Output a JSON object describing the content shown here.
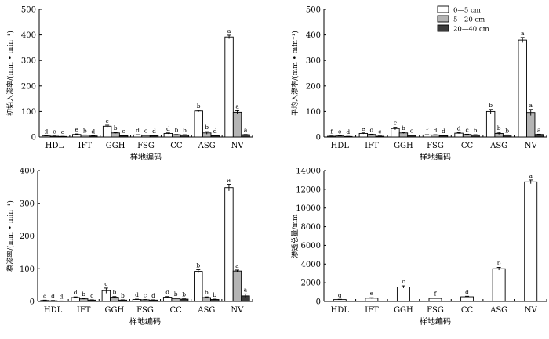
{
  "legend": {
    "series_names": [
      "0—5 cm",
      "5—20 cm",
      "20—40 cm"
    ],
    "colors": [
      "#ffffff",
      "#b4b4b4",
      "#3a3a3a"
    ]
  },
  "chart_data": [
    {
      "type": "bar",
      "id": "initial",
      "xlabel": "样地编码",
      "ylabel": "初始入渗率/(mm • min⁻¹)",
      "ylim": [
        0,
        500
      ],
      "yticks": [
        0,
        100,
        200,
        300,
        400,
        500
      ],
      "categories": [
        "HDL",
        "IFT",
        "GGH",
        "FSG",
        "CC",
        "ASG",
        "NV"
      ],
      "series": [
        {
          "name": "0—5 cm",
          "values": [
            4,
            10,
            42,
            8,
            14,
            102,
            392
          ],
          "errors": [
            1,
            2,
            4,
            1,
            2,
            3,
            7
          ],
          "labels": [
            "d",
            "e",
            "c",
            "d",
            "d",
            "b",
            "a"
          ]
        },
        {
          "name": "5—20 cm",
          "values": [
            3,
            7,
            16,
            6,
            9,
            16,
            97
          ],
          "errors": [
            1,
            1,
            2,
            1,
            1,
            5,
            6
          ],
          "labels": [
            "e",
            "b",
            "b",
            "c",
            "b",
            "b",
            "a"
          ]
        },
        {
          "name": "20—40 cm",
          "values": [
            2,
            4,
            5,
            5,
            8,
            5,
            9
          ],
          "errors": [
            0.5,
            1,
            1,
            1,
            1,
            1,
            1
          ],
          "labels": [
            "e",
            "d",
            "c",
            "d",
            "b",
            "d",
            "a"
          ]
        }
      ]
    },
    {
      "type": "bar",
      "id": "average",
      "xlabel": "样地编码",
      "ylabel": "平均入渗率/(mm • min⁻¹)",
      "ylim": [
        0,
        500
      ],
      "yticks": [
        0,
        100,
        200,
        300,
        400,
        500
      ],
      "categories": [
        "HDL",
        "IFT",
        "GGH",
        "FSG",
        "CC",
        "ASG",
        "NV"
      ],
      "series": [
        {
          "name": "0—5 cm",
          "values": [
            3,
            14,
            33,
            8,
            15,
            100,
            380
          ],
          "errors": [
            1,
            2,
            5,
            1,
            2,
            8,
            10
          ],
          "labels": [
            "f",
            "e",
            "c",
            "f",
            "d",
            "b",
            "a"
          ]
        },
        {
          "name": "5—20 cm",
          "values": [
            4,
            10,
            16,
            8,
            10,
            14,
            96
          ],
          "errors": [
            1,
            1,
            2,
            1,
            1,
            4,
            12
          ],
          "labels": [
            "e",
            "d",
            "b",
            "d",
            "c",
            "b",
            "a"
          ]
        },
        {
          "name": "20—40 cm",
          "values": [
            2,
            3,
            6,
            5,
            8,
            7,
            10
          ],
          "errors": [
            0.5,
            1,
            1,
            1,
            1,
            1,
            1
          ],
          "labels": [
            "d",
            "c",
            "c",
            "d",
            "b",
            "b",
            "a"
          ]
        }
      ]
    },
    {
      "type": "bar",
      "id": "steady",
      "xlabel": "样地编码",
      "ylabel": "稳渗率/(mm • min⁻¹)",
      "ylim": [
        0,
        400
      ],
      "yticks": [
        0,
        100,
        200,
        300,
        400
      ],
      "categories": [
        "HDL",
        "IFT",
        "GGH",
        "FSG",
        "CC",
        "ASG",
        "NV"
      ],
      "series": [
        {
          "name": "0—5 cm",
          "values": [
            3,
            12,
            33,
            6,
            13,
            92,
            348
          ],
          "errors": [
            1,
            2,
            8,
            1,
            2,
            5,
            10
          ],
          "labels": [
            "c",
            "d",
            "c",
            "d",
            "d",
            "b",
            "a"
          ]
        },
        {
          "name": "5—20 cm",
          "values": [
            2,
            8,
            13,
            5,
            9,
            12,
            93
          ],
          "errors": [
            1,
            1,
            2,
            1,
            1,
            2,
            3
          ],
          "labels": [
            "d",
            "b",
            "b",
            "c",
            "b",
            "b",
            "a"
          ]
        },
        {
          "name": "20—40 cm",
          "values": [
            1,
            4,
            4,
            4,
            7,
            6,
            17
          ],
          "errors": [
            0.5,
            1,
            1,
            1,
            1,
            1,
            6
          ],
          "labels": [
            "d",
            "c",
            "b",
            "d",
            "b",
            "b",
            "a"
          ]
        }
      ]
    },
    {
      "type": "bar",
      "id": "total",
      "xlabel": "样地编码",
      "ylabel": "渗透总量/mm",
      "ylim": [
        0,
        14000
      ],
      "yticks": [
        0,
        2000,
        4000,
        6000,
        8000,
        10000,
        12000,
        14000
      ],
      "categories": [
        "HDL",
        "IFT",
        "GGH",
        "FSG",
        "CC",
        "ASG",
        "NV"
      ],
      "series": [
        {
          "name": "0—5 cm",
          "values": [
            200,
            350,
            1550,
            330,
            500,
            3500,
            12800
          ],
          "errors": [
            30,
            50,
            120,
            30,
            60,
            150,
            200
          ],
          "labels": [
            "g",
            "e",
            "c",
            "f",
            "d",
            "b",
            "a"
          ]
        }
      ]
    }
  ]
}
